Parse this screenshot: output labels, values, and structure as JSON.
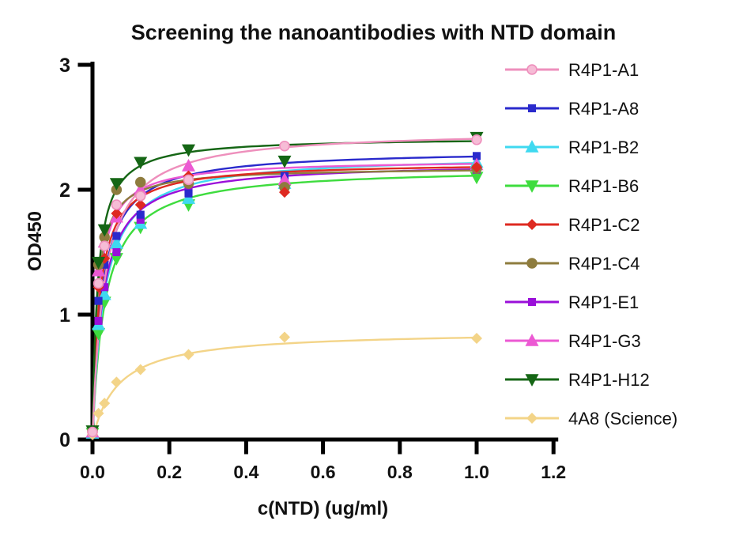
{
  "chart_data": {
    "type": "scatter",
    "title": "Screening the nanoantibodies with NTD domain",
    "xlabel": "c(NTD) (ug/ml)",
    "ylabel": "OD450",
    "xlim": [
      0,
      1.2
    ],
    "ylim": [
      0,
      3
    ],
    "grid": false,
    "legend_position": "right",
    "xticks": [
      0,
      0.2,
      0.4,
      0.6,
      0.8,
      1.0,
      1.2
    ],
    "xtick_labels": [
      "0.0",
      "0.2",
      "0.4",
      "0.6",
      "0.8",
      "1.0",
      "1.2"
    ],
    "yticks": [
      0,
      1,
      2,
      3
    ],
    "ytick_labels": [
      "0",
      "1",
      "2",
      "3"
    ],
    "x": [
      0,
      0.0156,
      0.0313,
      0.0625,
      0.125,
      0.25,
      0.5,
      1.0
    ],
    "axis_color": "#000000",
    "series": [
      {
        "name": "R4P1-A1",
        "color": "#EE8FBC",
        "fill": "#F6BCD6",
        "marker": "circle",
        "values": [
          0.06,
          1.25,
          1.55,
          1.88,
          1.95,
          2.08,
          2.35,
          2.4
        ],
        "fit": {
          "bmax": 2.48,
          "kd": 0.03
        }
      },
      {
        "name": "R4P1-A8",
        "color": "#2A2ACC",
        "fill": "#2A2ACC",
        "marker": "square",
        "values": [
          0.05,
          1.11,
          1.4,
          1.63,
          1.8,
          1.97,
          2.11,
          2.27
        ],
        "fit": {
          "bmax": 2.32,
          "kd": 0.024
        }
      },
      {
        "name": "R4P1-B2",
        "color": "#3FD9F0",
        "fill": "#3FD9F0",
        "marker": "triangle-up",
        "values": [
          0.05,
          0.92,
          1.16,
          1.57,
          1.73,
          1.93,
          2.05,
          2.22
        ],
        "fit": {
          "bmax": 2.28,
          "kd": 0.03
        }
      },
      {
        "name": "R4P1-B6",
        "color": "#3EDC3E",
        "fill": "#3EDC3E",
        "marker": "triangle-down",
        "values": [
          0.05,
          0.85,
          1.1,
          1.45,
          1.7,
          1.88,
          2.0,
          2.1
        ],
        "fit": {
          "bmax": 2.18,
          "kd": 0.032
        }
      },
      {
        "name": "R4P1-C2",
        "color": "#DE2A21",
        "fill": "#DE2A21",
        "marker": "diamond",
        "values": [
          0.06,
          1.22,
          1.45,
          1.81,
          1.88,
          2.11,
          1.98,
          2.18
        ],
        "fit": {
          "bmax": 2.22,
          "kd": 0.018
        }
      },
      {
        "name": "R4P1-C4",
        "color": "#8E7C3E",
        "fill": "#8E7C3E",
        "marker": "circle",
        "values": [
          0.07,
          1.4,
          1.62,
          2.0,
          2.06,
          2.05,
          2.02,
          2.17
        ],
        "fit": {
          "bmax": 2.18,
          "kd": 0.012
        }
      },
      {
        "name": "R4P1-E1",
        "color": "#9A0FD9",
        "fill": "#9A0FD9",
        "marker": "square",
        "values": [
          0.05,
          0.95,
          1.22,
          1.5,
          1.76,
          2.0,
          2.03,
          2.16
        ],
        "fit": {
          "bmax": 2.22,
          "kd": 0.026
        }
      },
      {
        "name": "R4P1-G3",
        "color": "#EC59D3",
        "fill": "#EC59D3",
        "marker": "triangle-up",
        "values": [
          0.06,
          1.35,
          1.58,
          1.78,
          2.0,
          2.19,
          2.08,
          2.2
        ],
        "fit": {
          "bmax": 2.24,
          "kd": 0.015
        }
      },
      {
        "name": "R4P1-H12",
        "color": "#156615",
        "fill": "#156615",
        "marker": "triangle-down",
        "values": [
          0.07,
          1.42,
          1.68,
          2.05,
          2.22,
          2.32,
          2.23,
          2.42
        ],
        "fit": {
          "bmax": 2.42,
          "kd": 0.013
        }
      },
      {
        "name": "4A8 (Science)",
        "color": "#F3D488",
        "fill": "#F3D488",
        "marker": "diamond",
        "values": [
          0.04,
          0.21,
          0.29,
          0.46,
          0.56,
          0.68,
          0.82,
          0.81
        ],
        "fit": {
          "bmax": 0.87,
          "kd": 0.066
        }
      }
    ]
  }
}
